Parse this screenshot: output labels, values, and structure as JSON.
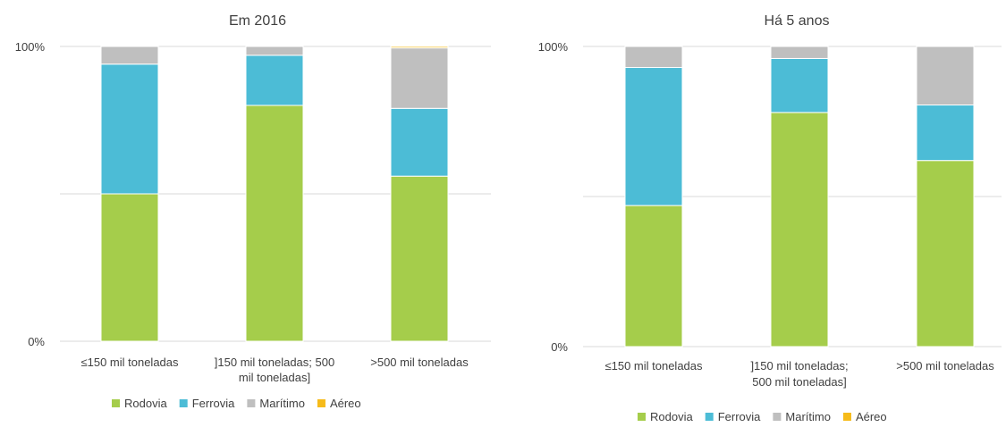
{
  "colors": {
    "Rodovia": "#a5cd4b",
    "Ferrovia": "#4cbcd6",
    "Marítimo": "#bfbfbf",
    "Aéreo": "#f6bb1a",
    "grid": "#d9d9d9",
    "text": "#404040"
  },
  "chart_data": [
    {
      "type": "bar",
      "stacked": true,
      "title": "Em 2016",
      "xlabel": "",
      "ylabel": "",
      "ylim": [
        0,
        100
      ],
      "y_tick_labels": [
        "0%",
        "100%"
      ],
      "grid": true,
      "legend_position": "bottom",
      "categories": [
        [
          "≤150 mil toneladas"
        ],
        [
          "]150 mil toneladas; 500",
          "mil toneladas]"
        ],
        [
          ">500 mil toneladas"
        ]
      ],
      "series": [
        {
          "name": "Rodovia",
          "values": [
            50,
            80,
            56
          ]
        },
        {
          "name": "Ferrovia",
          "values": [
            44,
            17,
            23
          ]
        },
        {
          "name": "Marítimo",
          "values": [
            6,
            3,
            20.5
          ]
        },
        {
          "name": "Aéreo",
          "values": [
            0,
            0,
            0.5
          ]
        }
      ]
    },
    {
      "type": "bar",
      "stacked": true,
      "title": "Há 5 anos",
      "xlabel": "",
      "ylabel": "",
      "ylim": [
        0,
        100
      ],
      "y_tick_labels": [
        "0%",
        "100%"
      ],
      "grid": true,
      "legend_position": "bottom",
      "categories": [
        [
          "≤150 mil toneladas"
        ],
        [
          "]150 mil toneladas;",
          "500 mil toneladas]"
        ],
        [
          ">500 mil toneladas"
        ]
      ],
      "series": [
        {
          "name": "Rodovia",
          "values": [
            47,
            78,
            62
          ]
        },
        {
          "name": "Ferrovia",
          "values": [
            46,
            18,
            18.5
          ]
        },
        {
          "name": "Marítimo",
          "values": [
            7,
            4,
            19.5
          ]
        },
        {
          "name": "Aéreo",
          "values": [
            0,
            0,
            0
          ]
        }
      ]
    }
  ]
}
